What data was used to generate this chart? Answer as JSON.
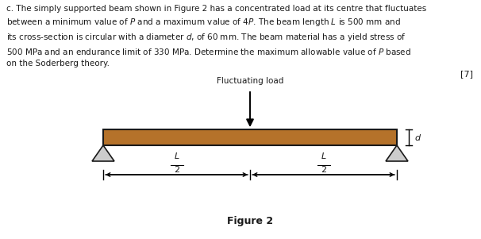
{
  "bg_color": "#ffffff",
  "beam_color": "#b5722a",
  "beam_border_color": "#1a1a1a",
  "support_fill": "#cccccc",
  "support_edge": "#1a1a1a",
  "text_color": "#1a1a1a",
  "paragraph": "c. The simply supported beam shown in Figure 2 has a concentrated load at its centre that fluctuates\nbetween a minimum value of $P$ and a maximum value of 4$P$. The beam length $L$ is 500 mm and\nits cross-section is circular with a diameter $d$, of 60 mm. The beam material has a yield stress of\n500 MPa and an endurance limit of 330 MPa. Determine the maximum allowable value of $P$ based\non the Soderberg theory.",
  "mark": "[7]",
  "fig_label": "Figure 2",
  "fl_label": "Fluctuating load",
  "d_label": "$d$",
  "L_label": "$L$",
  "two_label": "2",
  "figw": 6.06,
  "figh": 3.01,
  "dpi": 100
}
